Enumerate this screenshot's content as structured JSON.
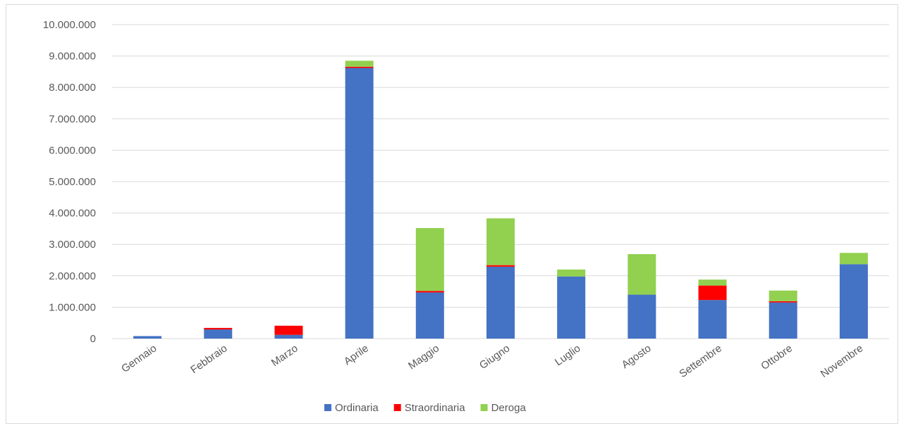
{
  "chart_data": {
    "type": "bar",
    "stacked": true,
    "title": "",
    "xlabel": "",
    "ylabel": "",
    "ylim": [
      0,
      10000000
    ],
    "ytick_step": 1000000,
    "ytick_labels": [
      "0",
      "1.000.000",
      "2.000.000",
      "3.000.000",
      "4.000.000",
      "5.000.000",
      "6.000.000",
      "7.000.000",
      "8.000.000",
      "9.000.000",
      "10.000.000"
    ],
    "grid": true,
    "legend_position": "bottom",
    "categories": [
      "Gennaio",
      "Febbraio",
      "Marzo",
      "Aprile",
      "Maggio",
      "Giugno",
      "Luglio",
      "Agosto",
      "Settembre",
      "Ottobre",
      "Novembre"
    ],
    "series": [
      {
        "name": "Ordinaria",
        "color": "#4472c4",
        "values": [
          80000,
          290000,
          120000,
          8620000,
          1470000,
          2290000,
          1980000,
          1400000,
          1230000,
          1150000,
          2370000
        ]
      },
      {
        "name": "Straordinaria",
        "color": "#ff0000",
        "values": [
          0,
          50000,
          290000,
          40000,
          50000,
          50000,
          0,
          0,
          460000,
          40000,
          0
        ]
      },
      {
        "name": "Deroga",
        "color": "#92d050",
        "values": [
          0,
          0,
          0,
          190000,
          2000000,
          1490000,
          220000,
          1290000,
          190000,
          340000,
          360000
        ]
      }
    ]
  }
}
